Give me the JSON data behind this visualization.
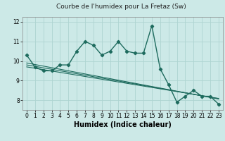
{
  "title": "Courbe de l'humidex pour La Fretaz (Sw)",
  "xlabel": "Humidex (Indice chaleur)",
  "background_color": "#cce9e7",
  "line_color": "#1e6b5e",
  "grid_color": "#aed4d1",
  "x_data": [
    0,
    1,
    2,
    3,
    4,
    5,
    6,
    7,
    8,
    9,
    10,
    11,
    12,
    13,
    14,
    15,
    16,
    17,
    18,
    19,
    20,
    21,
    22,
    23
  ],
  "y_main": [
    10.3,
    9.7,
    9.5,
    9.5,
    9.8,
    9.8,
    10.5,
    11.0,
    10.8,
    10.3,
    10.5,
    11.0,
    10.5,
    10.4,
    10.4,
    11.8,
    9.6,
    8.8,
    7.9,
    8.2,
    8.5,
    8.2,
    8.2,
    7.8
  ],
  "y_trend1": [
    9.9,
    9.82,
    9.74,
    9.66,
    9.58,
    9.5,
    9.42,
    9.34,
    9.26,
    9.18,
    9.1,
    9.02,
    8.94,
    8.86,
    8.78,
    8.7,
    8.62,
    8.54,
    8.46,
    8.38,
    8.3,
    8.22,
    8.14,
    8.06
  ],
  "y_trend2": [
    9.8,
    9.73,
    9.65,
    9.58,
    9.5,
    9.43,
    9.35,
    9.28,
    9.2,
    9.13,
    9.05,
    8.98,
    8.9,
    8.83,
    8.75,
    8.68,
    8.6,
    8.53,
    8.45,
    8.38,
    8.3,
    8.23,
    8.15,
    8.08
  ],
  "y_trend3": [
    9.7,
    9.63,
    9.56,
    9.49,
    9.42,
    9.35,
    9.28,
    9.21,
    9.14,
    9.07,
    9.0,
    8.93,
    8.86,
    8.79,
    8.72,
    8.65,
    8.58,
    8.51,
    8.44,
    8.37,
    8.3,
    8.23,
    8.16,
    8.09
  ],
  "ylim": [
    7.5,
    12.25
  ],
  "xlim": [
    -0.5,
    23.5
  ],
  "yticks": [
    8,
    9,
    10,
    11,
    12
  ],
  "xticks": [
    0,
    1,
    2,
    3,
    4,
    5,
    6,
    7,
    8,
    9,
    10,
    11,
    12,
    13,
    14,
    15,
    16,
    17,
    18,
    19,
    20,
    21,
    22,
    23
  ],
  "title_fontsize": 6.5,
  "tick_fontsize": 5.5,
  "label_fontsize": 7
}
